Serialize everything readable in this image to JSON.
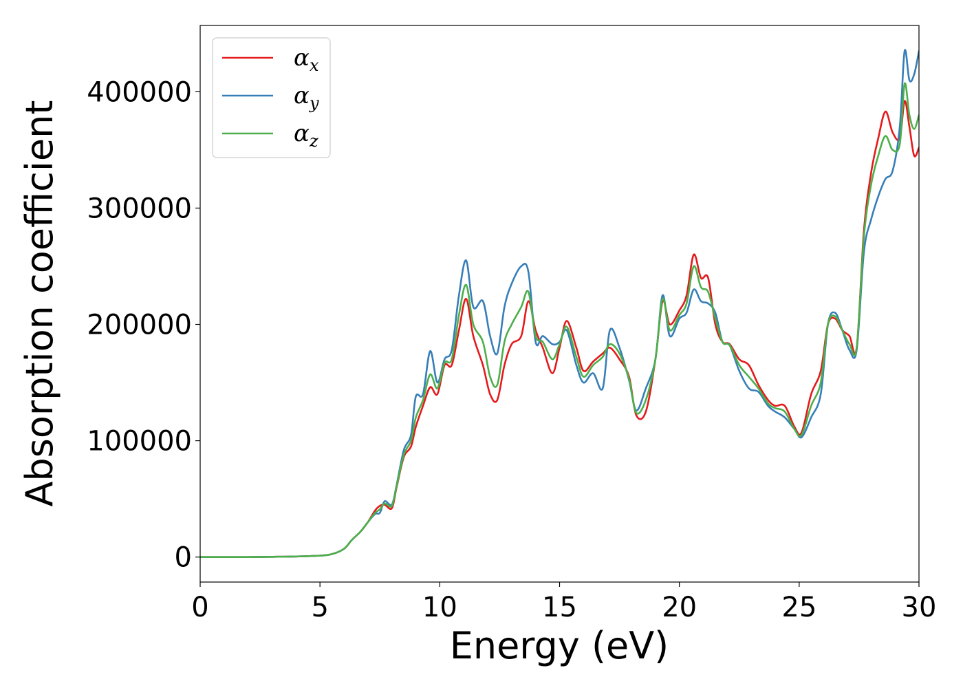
{
  "chart_data": {
    "type": "line",
    "title": "",
    "xlabel": "Energy (eV)",
    "ylabel": "Absorption coefficient",
    "xlim": [
      0,
      30
    ],
    "ylim": [
      -21500,
      457000
    ],
    "xticks": [
      0,
      5,
      10,
      15,
      20,
      25,
      30
    ],
    "yticks": [
      0,
      100000,
      200000,
      300000,
      400000
    ],
    "grid": false,
    "legend": "upper left",
    "series": [
      {
        "name": "α_x",
        "label_main": "α",
        "label_sub": "x",
        "color": "#e41a1c",
        "x": [
          0,
          1,
          2,
          3,
          4,
          5,
          5.5,
          6,
          6.3,
          6.5,
          6.7,
          7,
          7.3,
          7.5,
          7.7,
          8,
          8.2,
          8.5,
          8.8,
          9,
          9.3,
          9.6,
          9.9,
          10.2,
          10.5,
          10.8,
          11.1,
          11.4,
          11.8,
          12.1,
          12.4,
          12.7,
          13,
          13.4,
          13.7,
          14,
          14.3,
          14.7,
          15,
          15.3,
          15.7,
          16,
          16.4,
          16.8,
          17.1,
          17.5,
          17.9,
          18.2,
          18.6,
          19,
          19.3,
          19.6,
          20,
          20.3,
          20.6,
          20.9,
          21.2,
          21.5,
          21.8,
          22.1,
          22.5,
          22.9,
          23.3,
          23.7,
          24,
          24.4,
          24.8,
          25.1,
          25.5,
          25.9,
          26.2,
          26.5,
          26.8,
          27.1,
          27.4,
          27.7,
          28,
          28.3,
          28.6,
          28.9,
          29.2,
          29.4,
          29.6,
          29.8,
          30
        ],
        "y": [
          0,
          0,
          0,
          200,
          500,
          1200,
          2500,
          7000,
          14000,
          18000,
          22000,
          30000,
          40000,
          44000,
          45000,
          42000,
          60000,
          86000,
          95000,
          112000,
          130000,
          146000,
          140000,
          165000,
          165000,
          195000,
          222000,
          190000,
          165000,
          140000,
          135000,
          165000,
          183000,
          190000,
          220000,
          195000,
          180000,
          158000,
          180000,
          203000,
          180000,
          160000,
          168000,
          175000,
          180000,
          170000,
          155000,
          122000,
          125000,
          170000,
          220000,
          200000,
          212000,
          225000,
          260000,
          240000,
          240000,
          200000,
          185000,
          183000,
          170000,
          165000,
          148000,
          135000,
          130000,
          130000,
          112000,
          107000,
          140000,
          160000,
          200000,
          205000,
          195000,
          190000,
          180000,
          280000,
          330000,
          360000,
          383000,
          365000,
          360000,
          392000,
          370000,
          345000,
          352000
        ]
      },
      {
        "name": "α_y",
        "label_main": "α",
        "label_sub": "y",
        "color": "#377eb8",
        "x": [
          0,
          1,
          2,
          3,
          4,
          5,
          5.5,
          6,
          6.3,
          6.5,
          6.7,
          7,
          7.3,
          7.5,
          7.7,
          8,
          8.2,
          8.5,
          8.8,
          9,
          9.3,
          9.6,
          9.9,
          10.2,
          10.5,
          10.8,
          11.1,
          11.4,
          11.8,
          12.1,
          12.4,
          12.7,
          13,
          13.4,
          13.7,
          14,
          14.3,
          14.7,
          15,
          15.3,
          15.7,
          16,
          16.4,
          16.8,
          17.1,
          17.5,
          17.9,
          18.2,
          18.6,
          19,
          19.3,
          19.6,
          20,
          20.3,
          20.6,
          20.9,
          21.2,
          21.5,
          21.8,
          22.1,
          22.5,
          22.9,
          23.3,
          23.7,
          24,
          24.4,
          24.8,
          25.1,
          25.5,
          25.9,
          26.2,
          26.5,
          26.8,
          27.1,
          27.4,
          27.7,
          28,
          28.3,
          28.6,
          28.9,
          29.2,
          29.4,
          29.6,
          29.8,
          30
        ],
        "y": [
          0,
          0,
          0,
          200,
          500,
          1200,
          2500,
          7000,
          14000,
          18000,
          22000,
          30000,
          37000,
          38000,
          48000,
          45000,
          62000,
          92000,
          105000,
          138000,
          140000,
          177000,
          150000,
          170000,
          178000,
          225000,
          255000,
          215000,
          220000,
          190000,
          175000,
          215000,
          235000,
          250000,
          245000,
          185000,
          190000,
          183000,
          185000,
          195000,
          165000,
          150000,
          158000,
          145000,
          195000,
          180000,
          152000,
          126000,
          145000,
          170000,
          225000,
          190000,
          205000,
          210000,
          230000,
          220000,
          218000,
          210000,
          185000,
          182000,
          160000,
          145000,
          142000,
          130000,
          125000,
          120000,
          110000,
          103000,
          120000,
          140000,
          200000,
          210000,
          195000,
          178000,
          178000,
          262000,
          290000,
          310000,
          325000,
          332000,
          370000,
          435000,
          410000,
          415000,
          435000
        ]
      },
      {
        "name": "α_z",
        "label_main": "α",
        "label_sub": "z",
        "color": "#4daf4a",
        "x": [
          0,
          1,
          2,
          3,
          4,
          5,
          5.5,
          6,
          6.3,
          6.5,
          6.7,
          7,
          7.3,
          7.5,
          7.7,
          8,
          8.2,
          8.5,
          8.8,
          9,
          9.3,
          9.6,
          9.9,
          10.2,
          10.5,
          10.8,
          11.1,
          11.4,
          11.8,
          12.1,
          12.4,
          12.7,
          13,
          13.4,
          13.7,
          14,
          14.3,
          14.7,
          15,
          15.3,
          15.7,
          16,
          16.4,
          16.8,
          17.1,
          17.5,
          17.9,
          18.2,
          18.6,
          19,
          19.3,
          19.6,
          20,
          20.3,
          20.6,
          20.9,
          21.2,
          21.5,
          21.8,
          22.1,
          22.5,
          22.9,
          23.3,
          23.7,
          24,
          24.4,
          24.8,
          25.1,
          25.5,
          25.9,
          26.2,
          26.5,
          26.8,
          27.1,
          27.4,
          27.7,
          28,
          28.3,
          28.6,
          28.9,
          29.2,
          29.4,
          29.6,
          29.8,
          30
        ],
        "y": [
          0,
          0,
          0,
          200,
          500,
          1200,
          2500,
          7000,
          14000,
          18000,
          22000,
          30000,
          38000,
          41000,
          46000,
          44000,
          61000,
          88000,
          100000,
          120000,
          135000,
          157000,
          145000,
          167000,
          170000,
          208000,
          234000,
          200000,
          185000,
          155000,
          148000,
          185000,
          200000,
          215000,
          228000,
          190000,
          185000,
          170000,
          183000,
          198000,
          172000,
          155000,
          165000,
          172000,
          183000,
          175000,
          153000,
          124000,
          135000,
          170000,
          222000,
          195000,
          208000,
          218000,
          250000,
          232000,
          228000,
          205000,
          185000,
          182000,
          165000,
          155000,
          145000,
          132000,
          128000,
          125000,
          110000,
          105000,
          130000,
          150000,
          200000,
          207000,
          195000,
          183000,
          180000,
          275000,
          320000,
          345000,
          362000,
          350000,
          355000,
          407000,
          380000,
          368000,
          380000
        ]
      }
    ]
  }
}
